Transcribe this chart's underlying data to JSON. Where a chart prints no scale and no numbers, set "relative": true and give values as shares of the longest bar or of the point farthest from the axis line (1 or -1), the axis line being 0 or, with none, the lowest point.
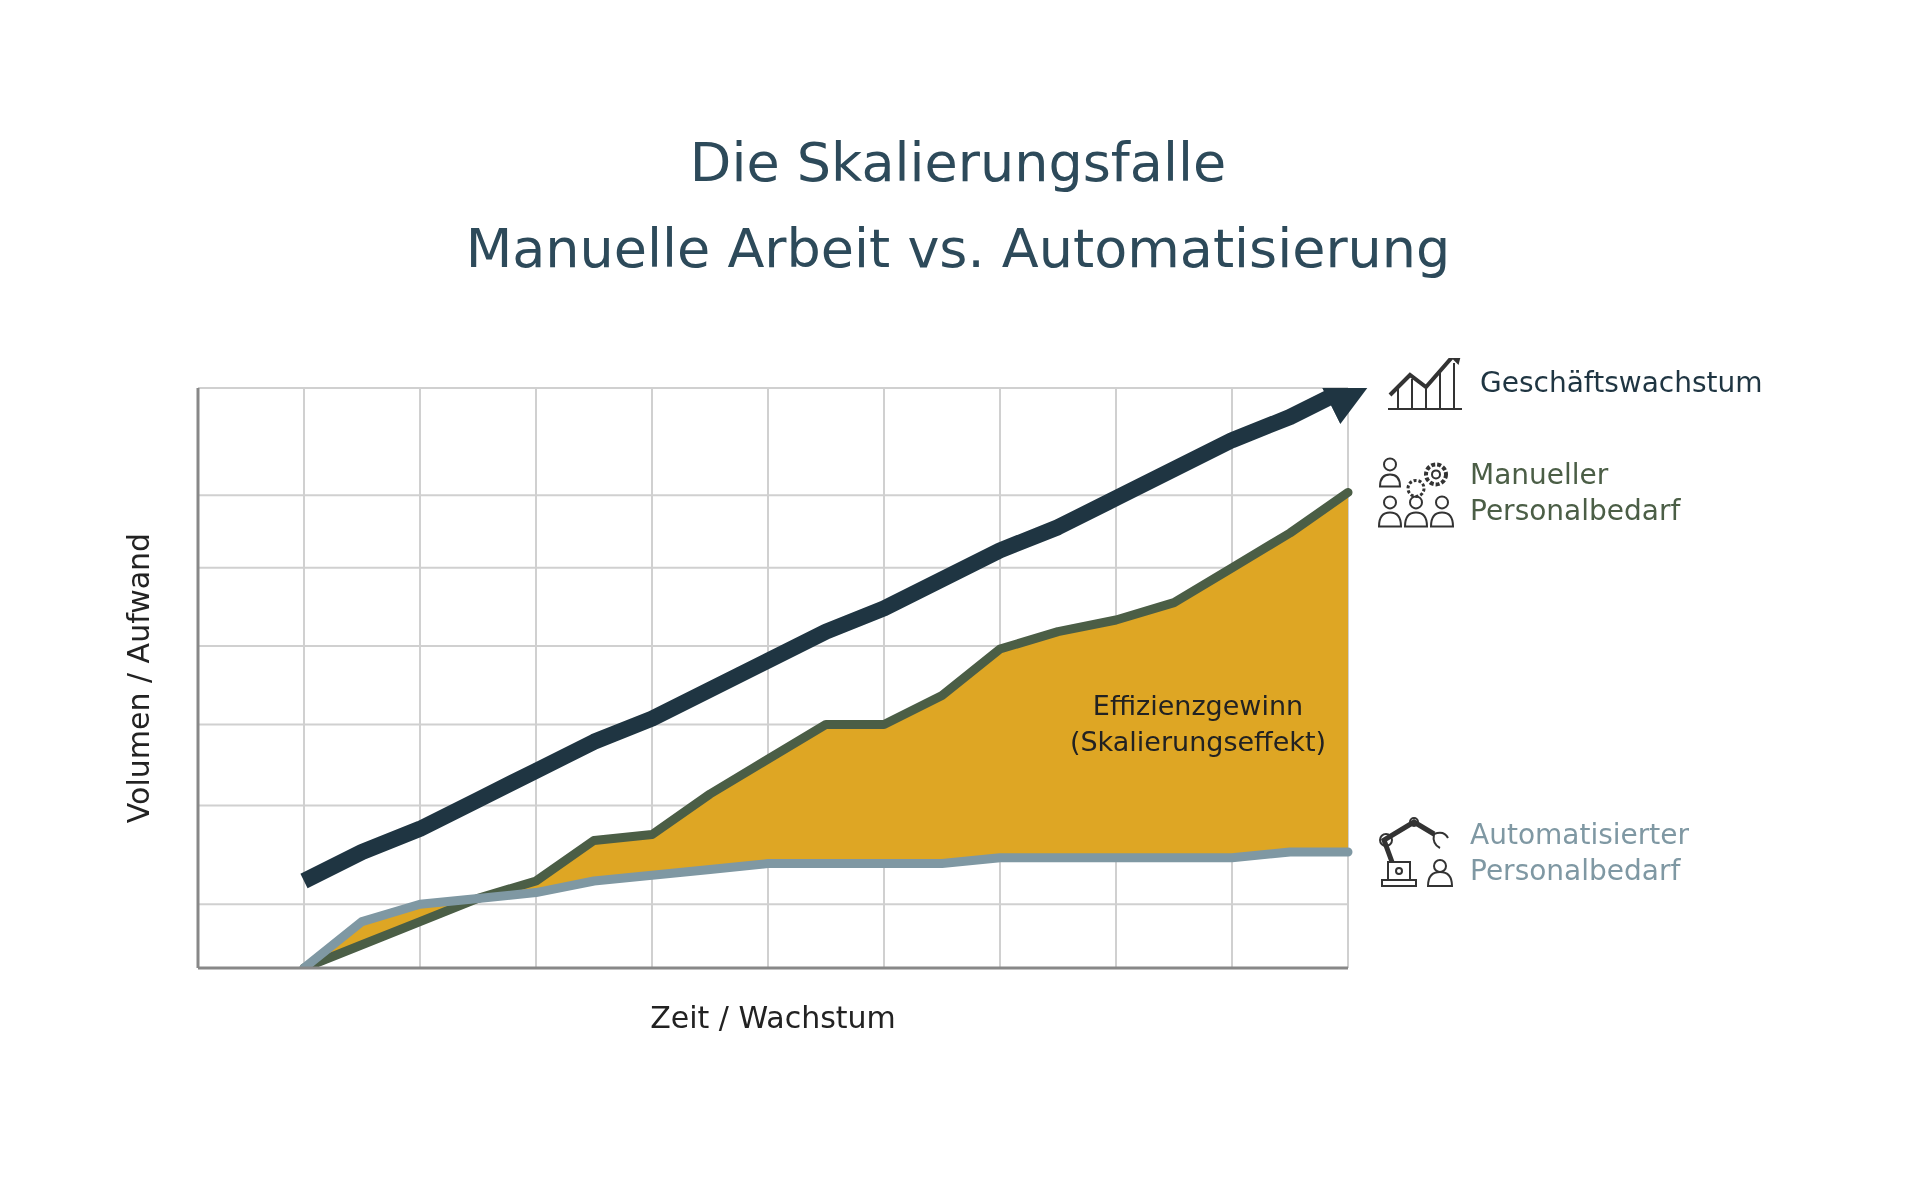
{
  "chart_data": {
    "type": "line",
    "title": "Die Skalierungsfalle",
    "subtitle": "Manuelle Arbeit vs. Automatisierung",
    "xlabel": "Zeit / Wachstum",
    "ylabel": "Volumen / Aufwand",
    "relative": true,
    "grid": true,
    "marker": "none",
    "line_style": "solid",
    "categories": [
      null,
      null,
      null,
      null,
      null,
      null,
      null,
      null,
      null,
      null,
      null,
      null,
      null,
      null,
      null,
      null,
      null,
      null,
      null
    ],
    "annotations": [
      "Effizienzgewinn (Skalierungseffekt)"
    ],
    "series": [
      {
        "name": "Geschäftswachstum",
        "color": "#1f3542",
        "values": [
          0.15,
          0.2,
          0.24,
          0.29,
          0.34,
          0.39,
          0.43,
          0.48,
          0.53,
          0.58,
          0.62,
          0.67,
          0.72,
          0.76,
          0.81,
          0.86,
          0.91,
          0.95,
          1.0
        ]
      },
      {
        "name": "Manueller Personalbedarf",
        "color": "#4b5e46",
        "values": [
          0,
          0.04,
          0.08,
          0.12,
          0.15,
          0.22,
          0.23,
          0.3,
          0.36,
          0.42,
          0.42,
          0.47,
          0.55,
          0.58,
          0.6,
          0.63,
          0.69,
          0.75,
          0.82
        ],
        "lower": [
          0,
          0.08,
          0.11,
          0.12,
          0.13,
          0.15,
          0.16,
          0.17,
          0.18,
          0.18,
          0.18,
          0.18,
          0.19,
          0.19,
          0.19,
          0.19,
          0.19,
          0.2,
          0.2
        ],
        "upper": [
          0,
          0.04,
          0.08,
          0.12,
          0.15,
          0.22,
          0.23,
          0.3,
          0.36,
          0.42,
          0.42,
          0.47,
          0.55,
          0.58,
          0.6,
          0.63,
          0.69,
          0.75,
          0.82
        ]
      },
      {
        "name": "Automatisierter Personalbedarf",
        "color": "#7f98a3",
        "values": [
          0,
          0.08,
          0.11,
          0.12,
          0.13,
          0.15,
          0.16,
          0.17,
          0.18,
          0.18,
          0.18,
          0.18,
          0.19,
          0.19,
          0.19,
          0.19,
          0.19,
          0.2,
          0.2
        ]
      }
    ]
  }
}
